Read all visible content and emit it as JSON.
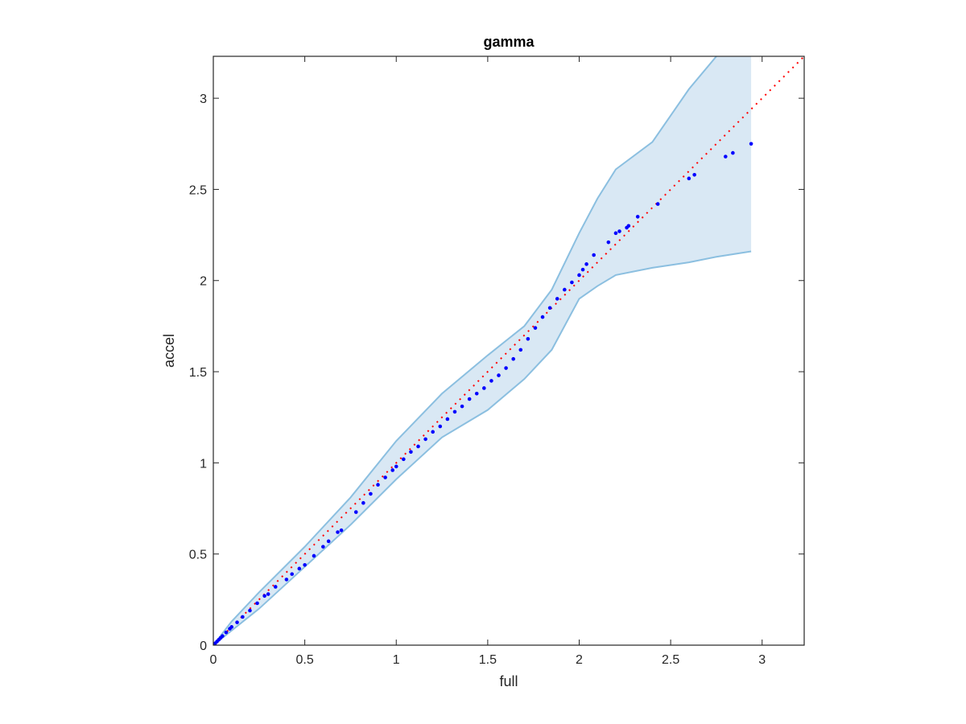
{
  "chart_data": {
    "type": "scatter",
    "title": "gamma",
    "xlabel": "full",
    "ylabel": "accel",
    "xlim": [
      0,
      3.23
    ],
    "ylim": [
      0,
      3.23
    ],
    "xticks": [
      0,
      0.5,
      1,
      1.5,
      2,
      2.5,
      3
    ],
    "xtick_labels": [
      "0",
      "0.5",
      "1",
      "1.5",
      "2",
      "2.5",
      "3"
    ],
    "yticks": [
      0,
      0.5,
      1,
      1.5,
      2,
      2.5,
      3
    ],
    "ytick_labels": [
      "0",
      "0.5",
      "1",
      "1.5",
      "2",
      "2.5",
      "3"
    ],
    "grid": false,
    "colors": {
      "points": "#0000ff",
      "reference": "#ff0000",
      "band_fill": "#d9e8f4",
      "band_edge": "#8bbfe0",
      "axes": "#262626"
    },
    "reference_line": {
      "style": "dotted",
      "from": [
        0,
        0
      ],
      "to": [
        3.23,
        3.23
      ]
    },
    "band": {
      "x": [
        0,
        0.1,
        0.25,
        0.5,
        0.75,
        1.0,
        1.25,
        1.5,
        1.7,
        1.85,
        2.0,
        2.1,
        2.2,
        2.4,
        2.6,
        2.75,
        2.94
      ],
      "upper": [
        0,
        0.13,
        0.29,
        0.54,
        0.81,
        1.12,
        1.38,
        1.59,
        1.75,
        1.95,
        2.26,
        2.45,
        2.61,
        2.76,
        3.05,
        3.23,
        3.45
      ],
      "lower": [
        0,
        0.08,
        0.2,
        0.43,
        0.66,
        0.91,
        1.14,
        1.29,
        1.46,
        1.62,
        1.9,
        1.97,
        2.03,
        2.07,
        2.1,
        2.13,
        2.16
      ]
    },
    "points": [
      [
        0.005,
        0.005
      ],
      [
        0.01,
        0.01
      ],
      [
        0.02,
        0.02
      ],
      [
        0.03,
        0.03
      ],
      [
        0.04,
        0.04
      ],
      [
        0.05,
        0.05
      ],
      [
        0.07,
        0.07
      ],
      [
        0.09,
        0.09
      ],
      [
        0.1,
        0.1
      ],
      [
        0.13,
        0.125
      ],
      [
        0.16,
        0.155
      ],
      [
        0.2,
        0.19
      ],
      [
        0.24,
        0.23
      ],
      [
        0.28,
        0.27
      ],
      [
        0.3,
        0.28
      ],
      [
        0.34,
        0.32
      ],
      [
        0.4,
        0.36
      ],
      [
        0.43,
        0.39
      ],
      [
        0.47,
        0.42
      ],
      [
        0.5,
        0.44
      ],
      [
        0.55,
        0.49
      ],
      [
        0.6,
        0.54
      ],
      [
        0.63,
        0.57
      ],
      [
        0.68,
        0.62
      ],
      [
        0.7,
        0.63
      ],
      [
        0.78,
        0.73
      ],
      [
        0.82,
        0.78
      ],
      [
        0.86,
        0.83
      ],
      [
        0.9,
        0.88
      ],
      [
        0.94,
        0.92
      ],
      [
        0.98,
        0.96
      ],
      [
        1.0,
        0.98
      ],
      [
        1.04,
        1.02
      ],
      [
        1.08,
        1.06
      ],
      [
        1.12,
        1.09
      ],
      [
        1.16,
        1.13
      ],
      [
        1.2,
        1.17
      ],
      [
        1.24,
        1.2
      ],
      [
        1.28,
        1.24
      ],
      [
        1.32,
        1.28
      ],
      [
        1.36,
        1.31
      ],
      [
        1.4,
        1.35
      ],
      [
        1.44,
        1.38
      ],
      [
        1.48,
        1.41
      ],
      [
        1.52,
        1.45
      ],
      [
        1.56,
        1.48
      ],
      [
        1.6,
        1.52
      ],
      [
        1.64,
        1.57
      ],
      [
        1.68,
        1.62
      ],
      [
        1.72,
        1.68
      ],
      [
        1.76,
        1.74
      ],
      [
        1.8,
        1.8
      ],
      [
        1.84,
        1.85
      ],
      [
        1.88,
        1.9
      ],
      [
        1.92,
        1.95
      ],
      [
        1.96,
        1.99
      ],
      [
        2.0,
        2.03
      ],
      [
        2.02,
        2.06
      ],
      [
        2.04,
        2.09
      ],
      [
        2.08,
        2.14
      ],
      [
        2.16,
        2.21
      ],
      [
        2.2,
        2.26
      ],
      [
        2.22,
        2.27
      ],
      [
        2.26,
        2.29
      ],
      [
        2.27,
        2.3
      ],
      [
        2.32,
        2.35
      ],
      [
        2.43,
        2.42
      ],
      [
        2.6,
        2.56
      ],
      [
        2.63,
        2.58
      ],
      [
        2.8,
        2.68
      ],
      [
        2.84,
        2.7
      ],
      [
        2.94,
        2.75
      ]
    ]
  }
}
